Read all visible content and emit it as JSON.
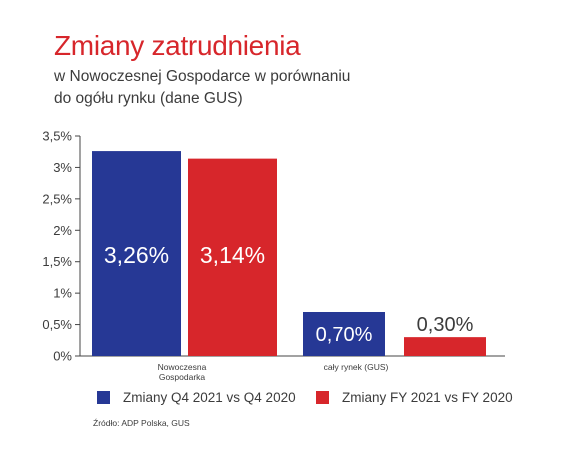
{
  "header": {
    "title": "Zmiany zatrudnienia",
    "subtitle_line1": "w Nowoczesnej Gospodarce w porównaniu",
    "subtitle_line2": "do ogółu rynku (dane GUS)"
  },
  "source": "Źródło: ADP Polska, GUS",
  "colors": {
    "series1": "#263895",
    "series2": "#d7262b",
    "title": "#d7262b"
  },
  "chart_data": {
    "type": "bar",
    "categories": [
      "Nowoczesna\nGospodarka",
      "cały rynek (GUS)"
    ],
    "series": [
      {
        "name": "Zmiany Q4 2021 vs Q4 2020",
        "values": [
          3.26,
          0.7
        ],
        "labels": [
          "3,26%",
          "0,70%"
        ],
        "color": "#263895"
      },
      {
        "name": "Zmiany FY 2021 vs FY 2020",
        "values": [
          3.14,
          0.3
        ],
        "labels": [
          "3,14%",
          "0,30%"
        ],
        "color": "#d7262b"
      }
    ],
    "yticks": [
      0,
      0.5,
      1,
      1.5,
      2,
      2.5,
      3,
      3.5
    ],
    "ytick_labels": [
      "0%",
      "0,5%",
      "1%",
      "1,5%",
      "2%",
      "2,5%",
      "3%",
      "3,5%"
    ],
    "ylim": [
      0,
      3.5
    ],
    "grid": false,
    "legend": "bottom"
  }
}
